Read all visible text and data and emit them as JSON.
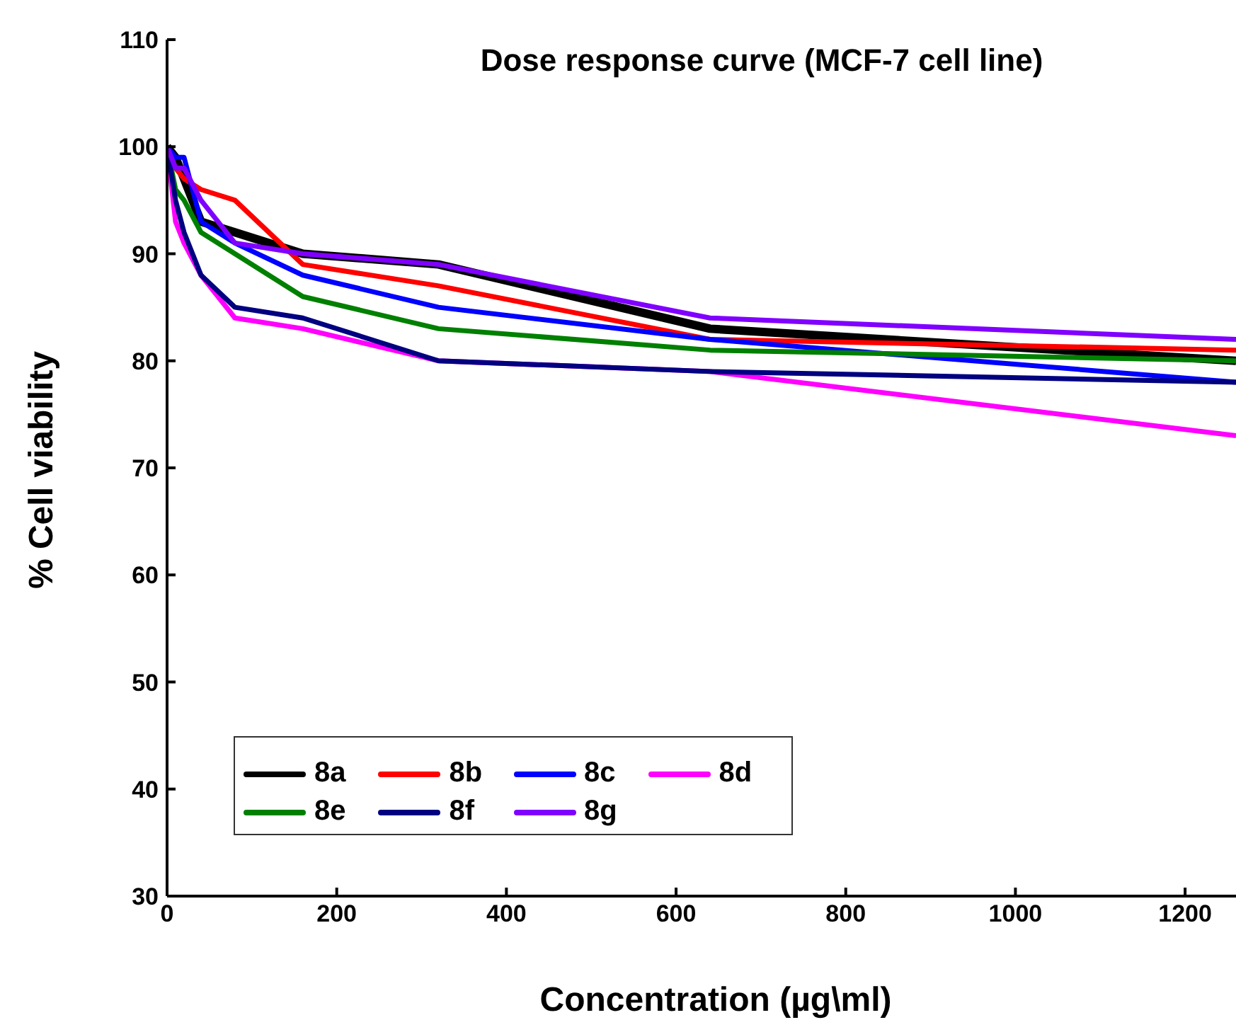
{
  "chart_data": {
    "type": "line",
    "title": "Dose response curve (MCF-7 cell line)",
    "xlabel": "Concentration (µg\\ml)",
    "ylabel": "% Cell viability",
    "x": [
      0,
      10,
      20,
      40,
      80,
      160,
      320,
      640,
      1260
    ],
    "series": [
      {
        "name": "8a",
        "color": "#000000",
        "values": [
          100,
          99,
          97,
          93,
          92,
          90,
          89,
          83,
          80
        ]
      },
      {
        "name": "8b",
        "color": "#ff0000",
        "values": [
          100,
          98,
          97,
          96,
          95,
          89,
          87,
          82,
          81
        ]
      },
      {
        "name": "8c",
        "color": "#0000ff",
        "values": [
          100,
          99,
          99,
          93,
          91,
          88,
          85,
          82,
          78
        ]
      },
      {
        "name": "8d",
        "color": "#ff00ff",
        "values": [
          100,
          93,
          91,
          88,
          84,
          83,
          80,
          79,
          73
        ]
      },
      {
        "name": "8e",
        "color": "#008000",
        "values": [
          100,
          96,
          95,
          92,
          90,
          86,
          83,
          81,
          80
        ]
      },
      {
        "name": "8f",
        "color": "#000080",
        "values": [
          100,
          95,
          92,
          88,
          85,
          84,
          80,
          79,
          78
        ]
      },
      {
        "name": "8g",
        "color": "#8000ff",
        "values": [
          100,
          98,
          98,
          95,
          91,
          90,
          89,
          84,
          82
        ]
      }
    ],
    "xlim": [
      0,
      1260
    ],
    "xticks": [
      0,
      200,
      400,
      600,
      800,
      1000,
      1200
    ],
    "ylim": [
      30,
      110
    ],
    "yticks": [
      30,
      40,
      50,
      60,
      70,
      80,
      90,
      100,
      110
    ],
    "grid": false,
    "legend": "bottom left",
    "marker": "none",
    "line_style": "solid"
  }
}
